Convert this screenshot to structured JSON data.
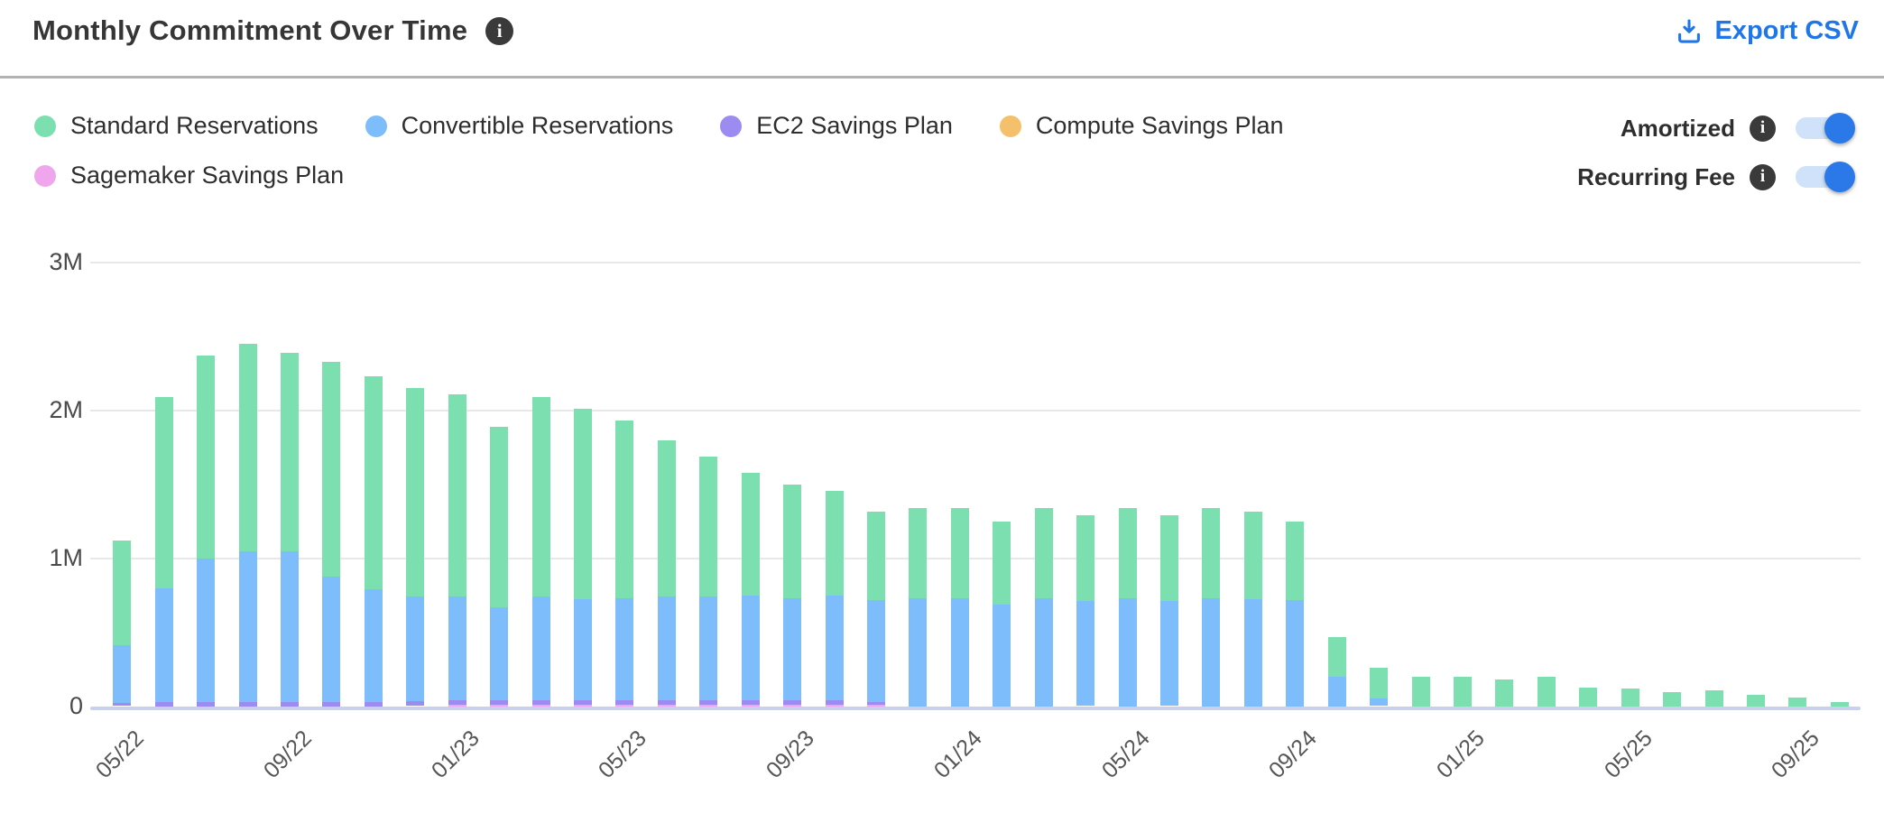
{
  "header": {
    "title": "Monthly Commitment Over Time",
    "title_info_icon": "info-icon",
    "export_label": "Export CSV",
    "export_color": "#1f76e8"
  },
  "legend": {
    "items": [
      {
        "label": "Standard Reservations",
        "color": "#7bdfb0"
      },
      {
        "label": "Convertible Reservations",
        "color": "#7dbdfb"
      },
      {
        "label": "EC2 Savings Plan",
        "color": "#9c8bf0"
      },
      {
        "label": "Compute Savings Plan",
        "color": "#f5c06b"
      },
      {
        "label": "Sagemaker Savings Plan",
        "color": "#f0a6ec"
      }
    ]
  },
  "toggles": [
    {
      "label": "Amortized",
      "state": "on"
    },
    {
      "label": "Recurring Fee",
      "state": "on"
    }
  ],
  "toggle_colors": {
    "track": "#cfe2f9",
    "knob": "#2b79e8"
  },
  "chart_data": {
    "type": "bar",
    "stacked": true,
    "values_unit": "millions",
    "ylim_m": [
      0,
      3
    ],
    "y_tick_labels": [
      "0",
      "1M",
      "2M",
      "3M"
    ],
    "grid": "horizontal",
    "legend_position": "top-left",
    "x": [
      "05/22",
      "06/22",
      "07/22",
      "08/22",
      "09/22",
      "10/22",
      "11/22",
      "12/22",
      "01/23",
      "02/23",
      "03/23",
      "04/23",
      "05/23",
      "06/23",
      "07/23",
      "08/23",
      "09/23",
      "10/23",
      "11/23",
      "12/23",
      "01/24",
      "02/24",
      "03/24",
      "04/24",
      "05/24",
      "06/24",
      "07/24",
      "08/24",
      "09/24",
      "10/24",
      "11/24",
      "12/24",
      "01/25",
      "02/25",
      "03/25",
      "04/25",
      "05/25",
      "06/25",
      "07/25",
      "08/25",
      "09/25",
      "10/25"
    ],
    "x_tick_labels": [
      "05/22",
      "09/22",
      "01/23",
      "05/23",
      "09/23",
      "01/24",
      "05/24",
      "09/24",
      "01/25",
      "05/25",
      "09/25"
    ],
    "x_tick_every": 4,
    "stack_order_bottom_to_top": [
      "Sagemaker Savings Plan",
      "Compute Savings Plan",
      "EC2 Savings Plan",
      "Convertible Reservations",
      "Standard Reservations"
    ],
    "series": [
      {
        "name": "Standard Reservations",
        "color": "#7bdfb0",
        "values": [
          0.71,
          1.29,
          1.37,
          1.4,
          1.34,
          1.45,
          1.44,
          1.41,
          1.37,
          1.22,
          1.35,
          1.29,
          1.2,
          1.06,
          0.95,
          0.83,
          0.77,
          0.71,
          0.6,
          0.61,
          0.61,
          0.56,
          0.61,
          0.58,
          0.61,
          0.58,
          0.61,
          0.59,
          0.53,
          0.27,
          0.21,
          0.2,
          0.2,
          0.18,
          0.2,
          0.13,
          0.12,
          0.1,
          0.11,
          0.08,
          0.06,
          0.03
        ]
      },
      {
        "name": "Convertible Reservations",
        "color": "#7dbdfb",
        "values": [
          0.39,
          0.77,
          0.97,
          1.02,
          1.02,
          0.85,
          0.76,
          0.71,
          0.7,
          0.63,
          0.7,
          0.68,
          0.69,
          0.7,
          0.7,
          0.71,
          0.69,
          0.71,
          0.69,
          0.73,
          0.73,
          0.69,
          0.73,
          0.71,
          0.73,
          0.71,
          0.73,
          0.73,
          0.72,
          0.2,
          0.05,
          0,
          0,
          0,
          0,
          0,
          0,
          0,
          0,
          0,
          0,
          0
        ]
      },
      {
        "name": "EC2 Savings Plan",
        "color": "#9c8bf0",
        "values": [
          0.02,
          0.03,
          0.03,
          0.03,
          0.03,
          0.03,
          0.03,
          0.03,
          0.03,
          0.03,
          0.03,
          0.03,
          0.03,
          0.03,
          0.03,
          0.03,
          0.03,
          0.03,
          0.02,
          0,
          0,
          0,
          0,
          0,
          0,
          0,
          0,
          0,
          0,
          0,
          0,
          0,
          0,
          0,
          0,
          0,
          0,
          0,
          0,
          0,
          0,
          0
        ]
      },
      {
        "name": "Compute Savings Plan",
        "color": "#f5c06b",
        "values": [
          0,
          0,
          0,
          0,
          0,
          0,
          0,
          0,
          0,
          0,
          0,
          0,
          0,
          0,
          0,
          0,
          0,
          0,
          0,
          0,
          0,
          0,
          0,
          0,
          0,
          0,
          0,
          0,
          0,
          0,
          0,
          0,
          0,
          0,
          0,
          0,
          0,
          0,
          0,
          0,
          0,
          0
        ]
      },
      {
        "name": "Sagemaker Savings Plan",
        "color": "#f0a6ec",
        "values": [
          0,
          0,
          0,
          0,
          0,
          0,
          0,
          0,
          0.01,
          0.01,
          0.01,
          0.01,
          0.01,
          0.01,
          0.01,
          0.01,
          0.01,
          0.01,
          0.01,
          0,
          0,
          0,
          0,
          0,
          0,
          0,
          0,
          0,
          0,
          0,
          0,
          0,
          0,
          0,
          0,
          0,
          0,
          0,
          0,
          0,
          0,
          0
        ]
      }
    ]
  }
}
